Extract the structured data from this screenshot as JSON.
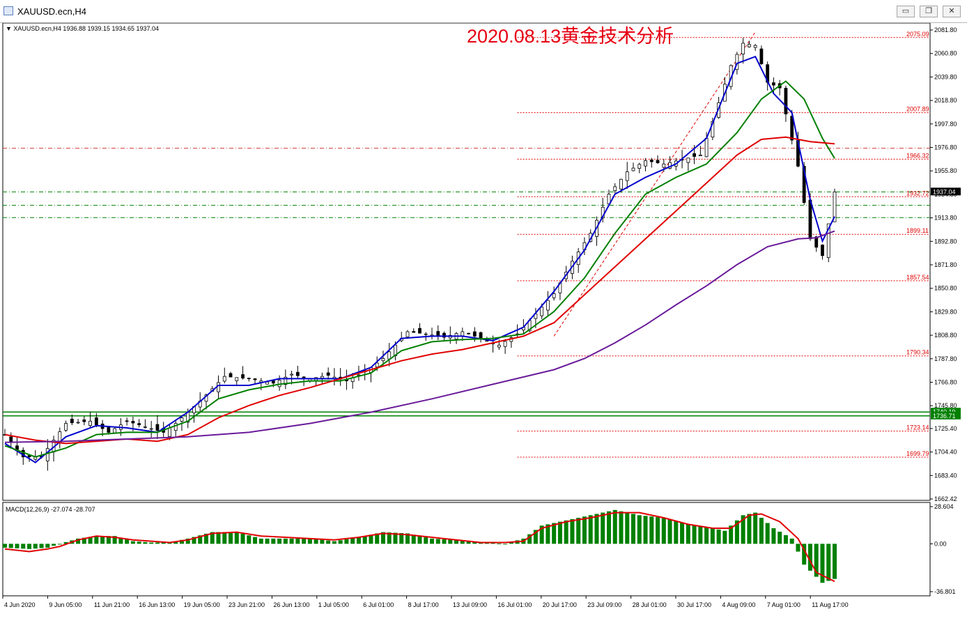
{
  "window": {
    "title": "XAUUSD.ecn,H4",
    "minimize_glyph": "▭",
    "restore_glyph": "❐",
    "close_glyph": "✕"
  },
  "chart_data": [
    {
      "type": "candlestick",
      "symbol_header": "XAUUSD.ecn,H4  1936.88 1939.15 1934.65 1937.04",
      "title": "2020.08.13黄金技术分析",
      "ylim": [
        1662.42,
        2081.82
      ],
      "y_ticks": [
        "2081.80",
        "2060.80",
        "2039.80",
        "2018.80",
        "1997.80",
        "1976.80",
        "1955.80",
        "1934.80",
        "1913.80",
        "1892.80",
        "1871.80",
        "1850.80",
        "1829.80",
        "1808.80",
        "1787.80",
        "1766.80",
        "1745.80",
        "1725.40",
        "1704.40",
        "1683.40",
        "1662.42"
      ],
      "x_ticks": [
        "4 Jun 2020",
        "9 Jun 05:00",
        "11 Jun 21:00",
        "16 Jun 13:00",
        "19 Jun 05:00",
        "23 Jun 21:00",
        "26 Jun 13:00",
        "1 Jul 05:00",
        "6 Jul 01:00",
        "8 Jul 17:00",
        "13 Jul 09:00",
        "16 Jul 01:00",
        "20 Jul 17:00",
        "23 Jul 09:00",
        "28 Jul 01:00",
        "30 Jul 17:00",
        "4 Aug 09:00",
        "7 Aug 01:00",
        "11 Aug 17:00"
      ],
      "current_price": "1937.04",
      "current_price_color": "#000000",
      "levels": [
        {
          "value": 2075.09,
          "label": "2075.09",
          "color": "#e00000",
          "style": "dotted"
        },
        {
          "value": 2007.89,
          "label": "2007.89",
          "color": "#e00000",
          "style": "dotted"
        },
        {
          "value": 1966.32,
          "label": "1966.32",
          "color": "#e00000",
          "style": "dotted"
        },
        {
          "value": 1932.72,
          "label": "1932.72",
          "color": "#e00000",
          "style": "dotted"
        },
        {
          "value": 1899.11,
          "label": "1899.11",
          "color": "#e00000",
          "style": "dotted"
        },
        {
          "value": 1857.54,
          "label": "1857.54",
          "color": "#e00000",
          "style": "dotted"
        },
        {
          "value": 1790.34,
          "label": "1790.34",
          "color": "#e00000",
          "style": "dotted"
        },
        {
          "value": 1723.14,
          "label": "1723.14",
          "color": "#e00000",
          "style": "dotted"
        },
        {
          "value": 1699.79,
          "label": "1699.79",
          "color": "#e00000",
          "style": "dotted"
        }
      ],
      "horizontal_lines": [
        {
          "value": 1976.0,
          "color": "#d03030",
          "style": "dashdot"
        },
        {
          "value": 1937.0,
          "color": "#008000",
          "style": "dashdot"
        },
        {
          "value": 1925.0,
          "color": "#008000",
          "style": "dashdot"
        },
        {
          "value": 1914.0,
          "color": "#008000",
          "style": "dashdot"
        },
        {
          "value": 1740.19,
          "label": "1740.19",
          "color": "#008000",
          "style": "solid"
        },
        {
          "value": 1736.71,
          "label": "1736.71",
          "color": "#008000",
          "style": "solid"
        }
      ],
      "up_color": "#000000",
      "down_color": "#000000",
      "ma_series": [
        {
          "color": "#0000cc",
          "period": "fast"
        },
        {
          "color": "#008000",
          "period": "medium"
        },
        {
          "color": "#e00000",
          "period": "slow"
        },
        {
          "color": "#6a1b9a",
          "period": "long"
        }
      ],
      "price_path": [
        [
          0,
          1720
        ],
        [
          3,
          1700
        ],
        [
          6,
          1700
        ],
        [
          10,
          1730
        ],
        [
          14,
          1732
        ],
        [
          17,
          1722
        ],
        [
          20,
          1732
        ],
        [
          23,
          1727
        ],
        [
          26,
          1722
        ],
        [
          28,
          1730
        ],
        [
          32,
          1750
        ],
        [
          36,
          1772
        ],
        [
          40,
          1770
        ],
        [
          44,
          1766
        ],
        [
          47,
          1774
        ],
        [
          50,
          1770
        ],
        [
          53,
          1773
        ],
        [
          56,
          1768
        ],
        [
          59,
          1776
        ],
        [
          62,
          1788
        ],
        [
          66,
          1812
        ],
        [
          69,
          1810
        ],
        [
          72,
          1807
        ],
        [
          75,
          1812
        ],
        [
          78,
          1806
        ],
        [
          81,
          1800
        ],
        [
          84,
          1810
        ],
        [
          87,
          1828
        ],
        [
          90,
          1846
        ],
        [
          93,
          1875
        ],
        [
          96,
          1900
        ],
        [
          99,
          1935
        ],
        [
          102,
          1955
        ],
        [
          105,
          1965
        ],
        [
          108,
          1962
        ],
        [
          111,
          1966
        ],
        [
          114,
          1970
        ],
        [
          116,
          2000
        ],
        [
          119,
          2050
        ],
        [
          121,
          2070
        ],
        [
          123,
          2068
        ],
        [
          125,
          2035
        ],
        [
          127,
          2030
        ],
        [
          130,
          1960
        ],
        [
          132,
          1895
        ],
        [
          134,
          1880
        ],
        [
          136,
          1937
        ]
      ],
      "ma_paths": [
        [
          [
            0,
            1712
          ],
          [
            5,
            1695
          ],
          [
            10,
            1718
          ],
          [
            15,
            1728
          ],
          [
            20,
            1726
          ],
          [
            25,
            1722
          ],
          [
            30,
            1740
          ],
          [
            35,
            1764
          ],
          [
            40,
            1764
          ],
          [
            45,
            1770
          ],
          [
            50,
            1770
          ],
          [
            55,
            1770
          ],
          [
            60,
            1780
          ],
          [
            65,
            1806
          ],
          [
            70,
            1808
          ],
          [
            75,
            1808
          ],
          [
            80,
            1804
          ],
          [
            85,
            1816
          ],
          [
            90,
            1848
          ],
          [
            95,
            1885
          ],
          [
            100,
            1935
          ],
          [
            105,
            1950
          ],
          [
            110,
            1962
          ],
          [
            115,
            1985
          ],
          [
            120,
            2052
          ],
          [
            123,
            2058
          ],
          [
            126,
            2025
          ],
          [
            129,
            2008
          ],
          [
            132,
            1930
          ],
          [
            134,
            1893
          ],
          [
            136,
            1915
          ]
        ],
        [
          [
            0,
            1710
          ],
          [
            5,
            1700
          ],
          [
            10,
            1708
          ],
          [
            15,
            1720
          ],
          [
            20,
            1722
          ],
          [
            25,
            1722
          ],
          [
            30,
            1732
          ],
          [
            35,
            1752
          ],
          [
            40,
            1760
          ],
          [
            45,
            1765
          ],
          [
            50,
            1768
          ],
          [
            55,
            1768
          ],
          [
            60,
            1775
          ],
          [
            65,
            1795
          ],
          [
            70,
            1803
          ],
          [
            75,
            1805
          ],
          [
            80,
            1806
          ],
          [
            85,
            1810
          ],
          [
            90,
            1830
          ],
          [
            95,
            1860
          ],
          [
            100,
            1900
          ],
          [
            105,
            1935
          ],
          [
            110,
            1950
          ],
          [
            115,
            1962
          ],
          [
            120,
            1990
          ],
          [
            124,
            2020
          ],
          [
            128,
            2036
          ],
          [
            131,
            2020
          ],
          [
            134,
            1985
          ],
          [
            136,
            1967
          ]
        ],
        [
          [
            0,
            1720
          ],
          [
            5,
            1715
          ],
          [
            10,
            1712
          ],
          [
            15,
            1714
          ],
          [
            20,
            1716
          ],
          [
            25,
            1714
          ],
          [
            30,
            1720
          ],
          [
            35,
            1735
          ],
          [
            40,
            1746
          ],
          [
            45,
            1755
          ],
          [
            50,
            1762
          ],
          [
            55,
            1770
          ],
          [
            60,
            1778
          ],
          [
            65,
            1786
          ],
          [
            70,
            1792
          ],
          [
            75,
            1796
          ],
          [
            80,
            1802
          ],
          [
            85,
            1808
          ],
          [
            90,
            1820
          ],
          [
            95,
            1845
          ],
          [
            100,
            1870
          ],
          [
            105,
            1895
          ],
          [
            110,
            1920
          ],
          [
            115,
            1945
          ],
          [
            120,
            1970
          ],
          [
            124,
            1984
          ],
          [
            128,
            1986
          ],
          [
            132,
            1982
          ],
          [
            136,
            1980
          ]
        ],
        [
          [
            0,
            1713
          ],
          [
            10,
            1714
          ],
          [
            20,
            1716
          ],
          [
            30,
            1718
          ],
          [
            40,
            1722
          ],
          [
            50,
            1730
          ],
          [
            60,
            1740
          ],
          [
            70,
            1752
          ],
          [
            80,
            1765
          ],
          [
            90,
            1778
          ],
          [
            95,
            1788
          ],
          [
            100,
            1802
          ],
          [
            105,
            1818
          ],
          [
            110,
            1836
          ],
          [
            115,
            1853
          ],
          [
            120,
            1872
          ],
          [
            125,
            1888
          ],
          [
            130,
            1895
          ],
          [
            133,
            1896
          ],
          [
            136,
            1902
          ]
        ]
      ],
      "levels_start_index": 84,
      "trend_line": {
        "from": [
          90,
          1808
        ],
        "to": [
          123,
          2080
        ],
        "color": "#e00000",
        "style": "dashed"
      }
    },
    {
      "type": "bar",
      "title": "MACD(12,26,9) -27.074 -28.707",
      "ylim": [
        -36.801,
        28.604
      ],
      "y_ticks": [
        "28.604",
        "0.00",
        "-36.801"
      ],
      "bar_color": "#008000",
      "signal_color": "#e00000",
      "hist_path": [
        [
          0,
          -3
        ],
        [
          4,
          -4
        ],
        [
          7,
          -3
        ],
        [
          9,
          0
        ],
        [
          12,
          4
        ],
        [
          15,
          6
        ],
        [
          18,
          6
        ],
        [
          21,
          2
        ],
        [
          24,
          1
        ],
        [
          27,
          1
        ],
        [
          30,
          4
        ],
        [
          34,
          9
        ],
        [
          38,
          9
        ],
        [
          42,
          4
        ],
        [
          46,
          4
        ],
        [
          50,
          4
        ],
        [
          54,
          2
        ],
        [
          58,
          5
        ],
        [
          62,
          9
        ],
        [
          66,
          8
        ],
        [
          70,
          4
        ],
        [
          74,
          3
        ],
        [
          78,
          1
        ],
        [
          82,
          0
        ],
        [
          85,
          4
        ],
        [
          88,
          14
        ],
        [
          92,
          18
        ],
        [
          96,
          22
        ],
        [
          100,
          26
        ],
        [
          104,
          22
        ],
        [
          108,
          20
        ],
        [
          112,
          15
        ],
        [
          116,
          12
        ],
        [
          118,
          10
        ],
        [
          121,
          22
        ],
        [
          123,
          24
        ],
        [
          126,
          12
        ],
        [
          129,
          4
        ],
        [
          131,
          -16
        ],
        [
          134,
          -30
        ],
        [
          136,
          -27
        ]
      ],
      "signal_path": [
        [
          0,
          -4
        ],
        [
          4,
          -6
        ],
        [
          7,
          -4
        ],
        [
          9,
          -2
        ],
        [
          12,
          3
        ],
        [
          15,
          6
        ],
        [
          18,
          5
        ],
        [
          21,
          3
        ],
        [
          24,
          2
        ],
        [
          27,
          1
        ],
        [
          30,
          3
        ],
        [
          34,
          8
        ],
        [
          38,
          9
        ],
        [
          42,
          6
        ],
        [
          46,
          5
        ],
        [
          50,
          4
        ],
        [
          54,
          3
        ],
        [
          58,
          5
        ],
        [
          62,
          8
        ],
        [
          66,
          7
        ],
        [
          70,
          5
        ],
        [
          74,
          3
        ],
        [
          78,
          1
        ],
        [
          82,
          1
        ],
        [
          85,
          2
        ],
        [
          88,
          12
        ],
        [
          92,
          17
        ],
        [
          96,
          20
        ],
        [
          100,
          24
        ],
        [
          104,
          24
        ],
        [
          108,
          20
        ],
        [
          112,
          15
        ],
        [
          116,
          12
        ],
        [
          119,
          12
        ],
        [
          122,
          22
        ],
        [
          124,
          23
        ],
        [
          127,
          17
        ],
        [
          130,
          4
        ],
        [
          133,
          -22
        ],
        [
          136,
          -29
        ]
      ],
      "x_count": 137
    }
  ]
}
